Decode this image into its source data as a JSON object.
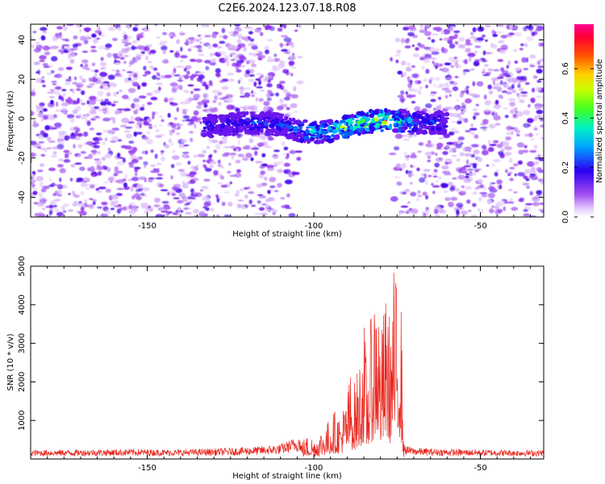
{
  "title": "C2E6.2024.123.07.18.R08",
  "colors": {
    "snr_line": "#e8261e",
    "spectrogram_low": "#a24bf0",
    "spectrogram_mid": "#4a10ee",
    "axis": "#000000"
  },
  "chart_data": [
    {
      "type": "heatmap",
      "title": "",
      "xlabel": "Height of straight line (km)",
      "ylabel": "Frequency (Hz)",
      "xlim": [
        -185,
        -31
      ],
      "ylim": [
        -50,
        48
      ],
      "x_ticks": [
        -150,
        -100,
        -50
      ],
      "y_ticks": [
        -40,
        -20,
        0,
        20,
        40
      ],
      "x_tick_labels": [
        "-150",
        "-100",
        "-50"
      ],
      "y_tick_labels": [
        "-40",
        "-20",
        "0",
        "20",
        "40"
      ],
      "colorbar": {
        "label": "Normalized spectral amplitude",
        "range": [
          0,
          0.78
        ],
        "ticks": [
          0.0,
          0.2,
          0.4,
          0.6
        ],
        "tick_labels": [
          "0.0",
          "0.2",
          "0.4",
          "0.6"
        ]
      },
      "noise_free_gap_x": [
        -106,
        -75
      ],
      "signal_band": {
        "x": [
          -133,
          -120,
          -110,
          -105,
          -100,
          -95,
          -90,
          -85,
          -80,
          -75,
          -70,
          -65,
          -60
        ],
        "center_freq": [
          -4,
          -2,
          -3,
          -6,
          -7,
          -6,
          -4,
          -2,
          -1,
          -1,
          -2,
          -2,
          -2
        ],
        "peak_amplitude": [
          0.18,
          0.22,
          0.2,
          0.3,
          0.42,
          0.45,
          0.6,
          0.5,
          0.62,
          0.5,
          0.3,
          0.22,
          0.18
        ]
      }
    },
    {
      "type": "line",
      "title": "",
      "xlabel": "Height of straight line (km)",
      "ylabel": "SNR (10 * v/v)",
      "xlim": [
        -185,
        -31
      ],
      "ylim": [
        0,
        5000
      ],
      "x_ticks": [
        -150,
        -100,
        -50
      ],
      "y_ticks": [
        1000,
        2000,
        3000,
        4000,
        5000
      ],
      "x_tick_labels": [
        "-150",
        "-100",
        "-50"
      ],
      "y_tick_labels": [
        "1000",
        "2000",
        "3000",
        "4000",
        "5000"
      ],
      "series": [
        {
          "x": [
            -185,
            -170,
            -155,
            -140,
            -125,
            -115,
            -110,
            -106,
            -103,
            -101,
            -100,
            -98,
            -96,
            -94,
            -92,
            -90,
            -89,
            -88,
            -86,
            -85,
            -84,
            -83,
            -82,
            -81,
            -80,
            -79,
            -78,
            -77,
            -76,
            -75,
            -74,
            -73,
            -72,
            -70,
            -65,
            -60,
            -50,
            -40,
            -31
          ],
          "y": [
            180,
            190,
            200,
            190,
            220,
            260,
            300,
            420,
            520,
            600,
            500,
            700,
            900,
            1200,
            1100,
            1600,
            2200,
            1800,
            2600,
            3500,
            2200,
            3300,
            4100,
            5000,
            3000,
            3700,
            4200,
            3300,
            4700,
            4300,
            4800,
            300,
            260,
            230,
            210,
            200,
            190,
            180,
            180
          ]
        }
      ]
    }
  ]
}
